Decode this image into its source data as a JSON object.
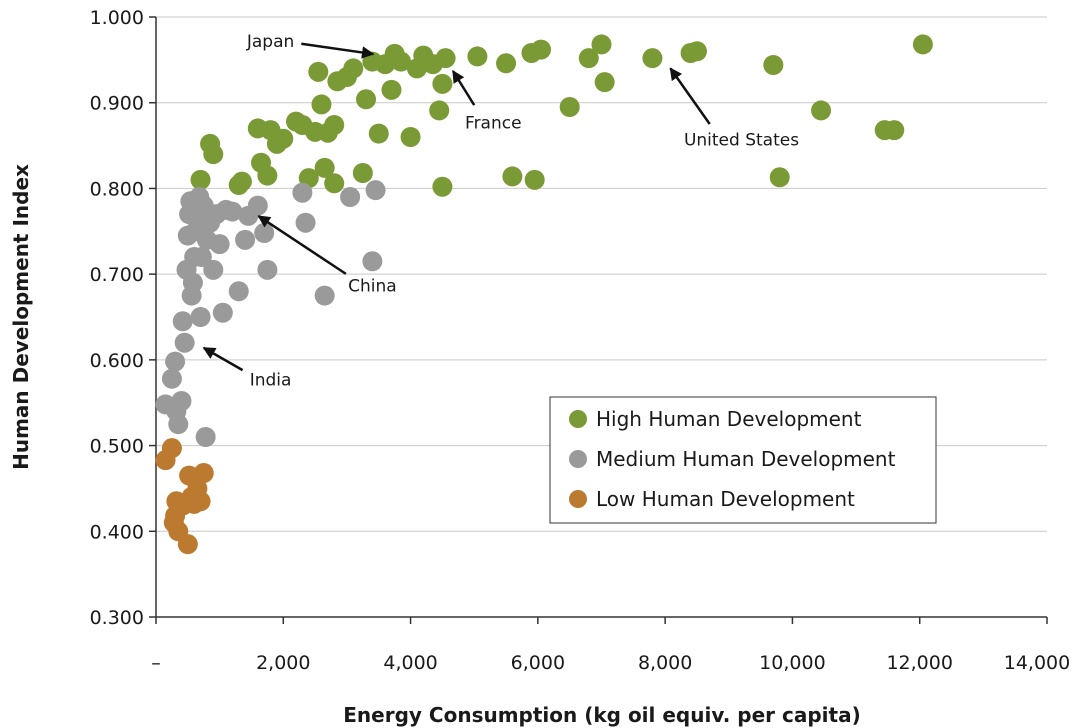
{
  "chart_data": {
    "type": "scatter",
    "title": "",
    "xlabel": "Energy Consumption (kg oil equiv. per capita)",
    "ylabel": "Human Development Index",
    "xlim": [
      0,
      14000
    ],
    "ylim": [
      0.3,
      1.0
    ],
    "x_ticks": [
      0,
      2000,
      4000,
      6000,
      8000,
      10000,
      12000,
      14000
    ],
    "x_tick_labels": [
      "–",
      "2,000",
      "4,000",
      "6,000",
      "8,000",
      "10,000",
      "12,000",
      "14,000"
    ],
    "y_ticks": [
      0.3,
      0.4,
      0.5,
      0.6,
      0.7,
      0.8,
      0.9,
      1.0
    ],
    "y_tick_labels": [
      "0.300",
      "0.400",
      "0.500",
      "0.600",
      "0.700",
      "0.800",
      "0.900",
      "1.000"
    ],
    "grid": "horizontal",
    "legend_position": "bottom-right",
    "series": [
      {
        "name": "High Human Development",
        "color": "#7a9a35",
        "points": [
          [
            700,
            0.81
          ],
          [
            850,
            0.852
          ],
          [
            900,
            0.84
          ],
          [
            1300,
            0.804
          ],
          [
            1350,
            0.808
          ],
          [
            1600,
            0.87
          ],
          [
            1650,
            0.83
          ],
          [
            1800,
            0.868
          ],
          [
            1750,
            0.815
          ],
          [
            1900,
            0.852
          ],
          [
            2000,
            0.858
          ],
          [
            2200,
            0.878
          ],
          [
            2300,
            0.874
          ],
          [
            2400,
            0.812
          ],
          [
            2500,
            0.866
          ],
          [
            2550,
            0.936
          ],
          [
            2600,
            0.898
          ],
          [
            2650,
            0.824
          ],
          [
            2700,
            0.865
          ],
          [
            2800,
            0.874
          ],
          [
            2800,
            0.806
          ],
          [
            2850,
            0.925
          ],
          [
            3000,
            0.93
          ],
          [
            3100,
            0.94
          ],
          [
            3250,
            0.818
          ],
          [
            3300,
            0.904
          ],
          [
            3400,
            0.948
          ],
          [
            3500,
            0.864
          ],
          [
            3600,
            0.945
          ],
          [
            3700,
            0.915
          ],
          [
            3750,
            0.957
          ],
          [
            3850,
            0.948
          ],
          [
            4000,
            0.86
          ],
          [
            4100,
            0.94
          ],
          [
            4200,
            0.955
          ],
          [
            4350,
            0.945
          ],
          [
            4450,
            0.891
          ],
          [
            4500,
            0.922
          ],
          [
            4500,
            0.802
          ],
          [
            4550,
            0.952
          ],
          [
            5050,
            0.954
          ],
          [
            5500,
            0.946
          ],
          [
            5600,
            0.814
          ],
          [
            5900,
            0.958
          ],
          [
            5950,
            0.81
          ],
          [
            6050,
            0.962
          ],
          [
            6500,
            0.895
          ],
          [
            6800,
            0.952
          ],
          [
            7000,
            0.968
          ],
          [
            7050,
            0.924
          ],
          [
            7800,
            0.952
          ],
          [
            8400,
            0.958
          ],
          [
            8500,
            0.96
          ],
          [
            9700,
            0.944
          ],
          [
            9800,
            0.813
          ],
          [
            10450,
            0.891
          ],
          [
            11450,
            0.868
          ],
          [
            11600,
            0.868
          ],
          [
            12050,
            0.968
          ]
        ]
      },
      {
        "name": "Medium Human Development",
        "color": "#9a9a9a",
        "points": [
          [
            150,
            0.548
          ],
          [
            250,
            0.578
          ],
          [
            300,
            0.598
          ],
          [
            320,
            0.54
          ],
          [
            350,
            0.525
          ],
          [
            400,
            0.552
          ],
          [
            420,
            0.645
          ],
          [
            450,
            0.62
          ],
          [
            480,
            0.705
          ],
          [
            500,
            0.745
          ],
          [
            520,
            0.77
          ],
          [
            540,
            0.785
          ],
          [
            560,
            0.675
          ],
          [
            580,
            0.69
          ],
          [
            600,
            0.72
          ],
          [
            620,
            0.75
          ],
          [
            640,
            0.765
          ],
          [
            650,
            0.78
          ],
          [
            680,
            0.79
          ],
          [
            700,
            0.65
          ],
          [
            720,
            0.72
          ],
          [
            750,
            0.78
          ],
          [
            780,
            0.51
          ],
          [
            800,
            0.74
          ],
          [
            850,
            0.76
          ],
          [
            900,
            0.705
          ],
          [
            950,
            0.77
          ],
          [
            1000,
            0.735
          ],
          [
            1050,
            0.655
          ],
          [
            1100,
            0.775
          ],
          [
            1200,
            0.773
          ],
          [
            1300,
            0.68
          ],
          [
            1400,
            0.74
          ],
          [
            1450,
            0.768
          ],
          [
            1600,
            0.78
          ],
          [
            1700,
            0.748
          ],
          [
            1750,
            0.705
          ],
          [
            2300,
            0.795
          ],
          [
            2350,
            0.76
          ],
          [
            2650,
            0.675
          ],
          [
            3050,
            0.79
          ],
          [
            3400,
            0.715
          ],
          [
            3450,
            0.798
          ]
        ]
      },
      {
        "name": "Low Human Development",
        "color": "#bb7a30",
        "points": [
          [
            150,
            0.483
          ],
          [
            250,
            0.497
          ],
          [
            280,
            0.41
          ],
          [
            300,
            0.418
          ],
          [
            320,
            0.435
          ],
          [
            350,
            0.4
          ],
          [
            420,
            0.43
          ],
          [
            500,
            0.385
          ],
          [
            520,
            0.465
          ],
          [
            560,
            0.44
          ],
          [
            600,
            0.432
          ],
          [
            650,
            0.45
          ],
          [
            700,
            0.435
          ],
          [
            750,
            0.468
          ]
        ]
      }
    ],
    "annotations": [
      {
        "text": "Japan",
        "target": [
          3600,
          0.955
        ],
        "label_at": [
          1800,
          0.965
        ]
      },
      {
        "text": "France",
        "target": [
          4550,
          0.948
        ],
        "label_at": [
          5300,
          0.87
        ]
      },
      {
        "text": "United States",
        "target": [
          7950,
          0.95
        ],
        "label_at": [
          9200,
          0.85
        ]
      },
      {
        "text": "China",
        "target": [
          1450,
          0.775
        ],
        "label_at": [
          3400,
          0.68
        ]
      },
      {
        "text": "India",
        "target": [
          580,
          0.62
        ],
        "label_at": [
          1800,
          0.57
        ]
      }
    ]
  }
}
